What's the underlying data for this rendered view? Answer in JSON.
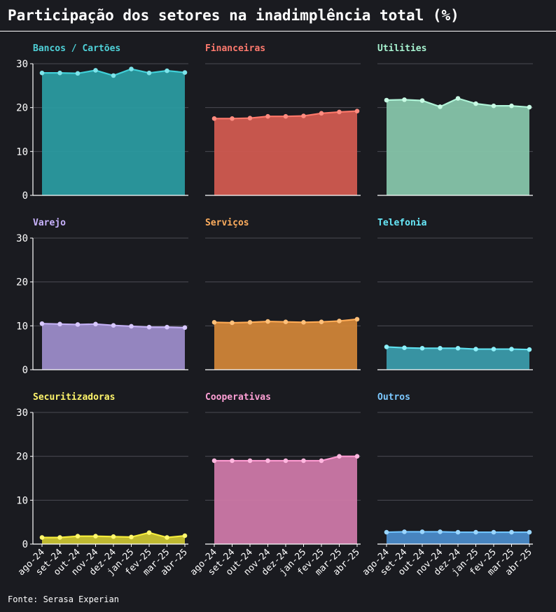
{
  "header": {
    "title": "Participação dos setores na inadimplência total (%)"
  },
  "footer": {
    "source": "Fonte: Serasa Experian"
  },
  "colors": {
    "background": "#1a1b20",
    "grid": "#4a4b52",
    "axis": "#ffffff",
    "text": "#ffffff"
  },
  "chart_data": [
    {
      "type": "area",
      "title": "Bancos / Cartões",
      "categories": [
        "ago-24",
        "set-24",
        "out-24",
        "nov-24",
        "dez-24",
        "jan-25",
        "fev-25",
        "mar-25",
        "abr-25"
      ],
      "values": [
        27.9,
        27.9,
        27.8,
        28.5,
        27.3,
        28.8,
        27.9,
        28.4,
        28.0
      ],
      "ylim": [
        0,
        30
      ],
      "yticks": [
        0,
        10,
        20,
        30
      ],
      "grid": true,
      "title_color": "#4fd1d8",
      "line_color": "#40d0d8",
      "fill_color": "#2a9aa0",
      "point_color": "#7ee4ea"
    },
    {
      "type": "area",
      "title": "Financeiras",
      "categories": [
        "ago-24",
        "set-24",
        "out-24",
        "nov-24",
        "dez-24",
        "jan-25",
        "fev-25",
        "mar-25",
        "abr-25"
      ],
      "values": [
        17.5,
        17.5,
        17.6,
        18.0,
        18.0,
        18.1,
        18.7,
        19.0,
        19.2
      ],
      "ylim": [
        0,
        30
      ],
      "yticks": [
        0,
        10,
        20,
        30
      ],
      "grid": true,
      "title_color": "#ff7a6e",
      "line_color": "#ff786a",
      "fill_color": "#d05a50",
      "point_color": "#ff8c80"
    },
    {
      "type": "area",
      "title": "Utilities",
      "categories": [
        "ago-24",
        "set-24",
        "out-24",
        "nov-24",
        "dez-24",
        "jan-25",
        "fev-25",
        "mar-25",
        "abr-25"
      ],
      "values": [
        21.7,
        21.8,
        21.6,
        20.2,
        22.1,
        20.9,
        20.4,
        20.4,
        20.1
      ],
      "ylim": [
        0,
        30
      ],
      "yticks": [
        0,
        10,
        20,
        30
      ],
      "grid": true,
      "title_color": "#a7f3d0",
      "line_color": "#b0f5d8",
      "fill_color": "#86c4aa",
      "point_color": "#c8fbe4"
    },
    {
      "type": "area",
      "title": "Varejo",
      "categories": [
        "ago-24",
        "set-24",
        "out-24",
        "nov-24",
        "dez-24",
        "jan-25",
        "fev-25",
        "mar-25",
        "abr-25"
      ],
      "values": [
        10.5,
        10.4,
        10.3,
        10.4,
        10.1,
        9.9,
        9.7,
        9.7,
        9.6
      ],
      "ylim": [
        0,
        30
      ],
      "yticks": [
        0,
        10,
        20,
        30
      ],
      "grid": true,
      "title_color": "#c9b3ff",
      "line_color": "#c4b0f5",
      "fill_color": "#9b8bc8",
      "point_color": "#d8c8ff"
    },
    {
      "type": "area",
      "title": "Serviços",
      "categories": [
        "ago-24",
        "set-24",
        "out-24",
        "nov-24",
        "dez-24",
        "jan-25",
        "fev-25",
        "mar-25",
        "abr-25"
      ],
      "values": [
        10.8,
        10.7,
        10.8,
        11.0,
        10.9,
        10.8,
        10.9,
        11.1,
        11.5
      ],
      "ylim": [
        0,
        30
      ],
      "yticks": [
        0,
        10,
        20,
        30
      ],
      "grid": true,
      "title_color": "#ffae5e",
      "line_color": "#ffab55",
      "fill_color": "#cf8438",
      "point_color": "#ffc07a"
    },
    {
      "type": "area",
      "title": "Telefonia",
      "categories": [
        "ago-24",
        "set-24",
        "out-24",
        "nov-24",
        "dez-24",
        "jan-25",
        "fev-25",
        "mar-25",
        "abr-25"
      ],
      "values": [
        5.2,
        5.0,
        4.9,
        4.9,
        4.9,
        4.7,
        4.7,
        4.7,
        4.6
      ],
      "ylim": [
        0,
        30
      ],
      "yticks": [
        0,
        10,
        20,
        30
      ],
      "grid": true,
      "title_color": "#67e8f9",
      "line_color": "#5ee0ee",
      "fill_color": "#3a9aaa",
      "point_color": "#8ef0fa"
    },
    {
      "type": "area",
      "title": "Securitizadoras",
      "categories": [
        "ago-24",
        "set-24",
        "out-24",
        "nov-24",
        "dez-24",
        "jan-25",
        "fev-25",
        "mar-25",
        "abr-25"
      ],
      "values": [
        1.5,
        1.5,
        1.8,
        1.8,
        1.7,
        1.6,
        2.6,
        1.5,
        1.9
      ],
      "ylim": [
        0,
        30
      ],
      "yticks": [
        0,
        10,
        20,
        30
      ],
      "grid": true,
      "title_color": "#fff56b",
      "line_color": "#f5ec3a",
      "fill_color": "#c8c232",
      "point_color": "#fff86e"
    },
    {
      "type": "area",
      "title": "Cooperativas",
      "categories": [
        "ago-24",
        "set-24",
        "out-24",
        "nov-24",
        "dez-24",
        "jan-25",
        "fev-25",
        "mar-25",
        "abr-25"
      ],
      "values": [
        19.0,
        19.0,
        19.0,
        19.0,
        19.0,
        19.0,
        19.0,
        20.0,
        20.0
      ],
      "ylim": [
        0,
        30
      ],
      "yticks": [
        0,
        10,
        20,
        30
      ],
      "grid": true,
      "title_color": "#ffa0d6",
      "line_color": "#ff9ad2",
      "fill_color": "#cc78a8",
      "point_color": "#ffb8e0"
    },
    {
      "type": "area",
      "title": "Outros",
      "categories": [
        "ago-24",
        "set-24",
        "out-24",
        "nov-24",
        "dez-24",
        "jan-25",
        "fev-25",
        "mar-25",
        "abr-25"
      ],
      "values": [
        2.7,
        2.8,
        2.8,
        2.8,
        2.7,
        2.7,
        2.7,
        2.7,
        2.7
      ],
      "ylim": [
        0,
        30
      ],
      "yticks": [
        0,
        10,
        20,
        30
      ],
      "grid": true,
      "title_color": "#7cc8ff",
      "line_color": "#70c4ff",
      "fill_color": "#4a8ac8",
      "point_color": "#9ad6ff"
    }
  ]
}
